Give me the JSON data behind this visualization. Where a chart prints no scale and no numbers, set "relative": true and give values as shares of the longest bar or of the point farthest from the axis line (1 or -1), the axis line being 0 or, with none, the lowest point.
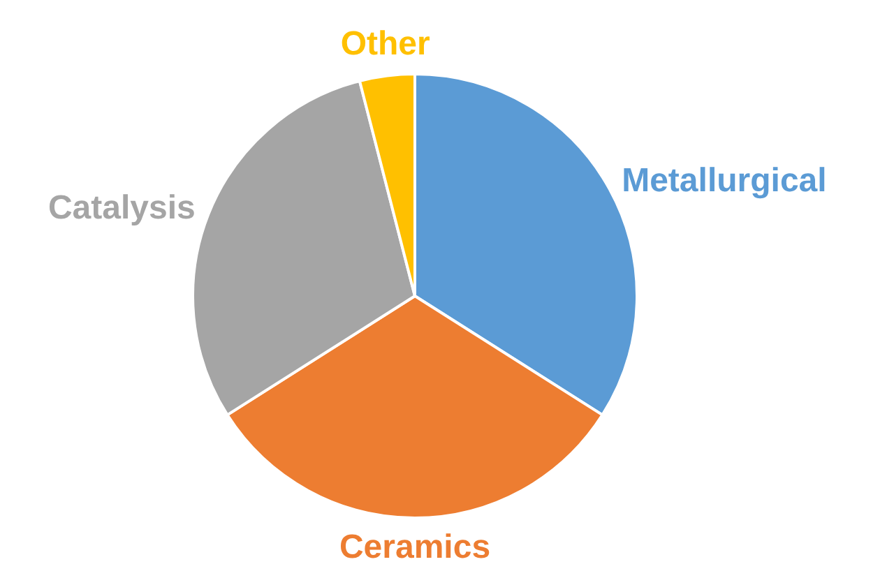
{
  "chart_data": {
    "type": "pie",
    "relative": true,
    "categories": [
      "Metallurgical",
      "Ceramics",
      "Catalysis",
      "Other"
    ],
    "values": [
      34,
      32,
      30,
      4
    ],
    "colors": [
      "#5b9bd5",
      "#ed7d31",
      "#a5a5a5",
      "#ffc000"
    ],
    "legend": false
  }
}
